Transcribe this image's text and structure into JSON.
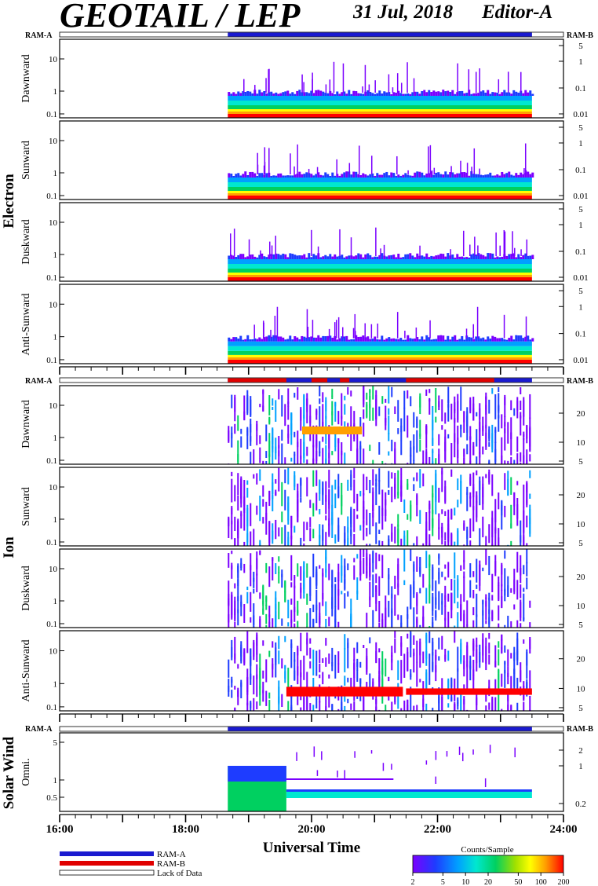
{
  "header": {
    "title": "GEOTAIL / LEP",
    "date": "31 Jul, 2018",
    "editor": "Editor-A"
  },
  "colors": {
    "ram_a": "#1a1ad0",
    "ram_b": "#e00000",
    "no_data": "#ffffff"
  },
  "groups": {
    "electron": "Electron",
    "ion": "Ion",
    "solar_wind": "Solar Wind"
  },
  "ram_labels": {
    "left": "RAM-A",
    "right": "RAM-B"
  },
  "panels": {
    "e_dawnward": "Dawnward",
    "e_sunward": "Sunward",
    "e_duskward": "Duskward",
    "e_antisunward": "Anti-Sunward",
    "i_dawnward": "Dawnward",
    "i_sunward": "Sunward",
    "i_duskward": "Duskward",
    "i_antisunward": "Anti-Sunward",
    "sw_omni": "Omni."
  },
  "xaxis": {
    "label": "Universal Time",
    "ticks": [
      "16:00",
      "18:00",
      "20:00",
      "22:00",
      "24:00"
    ]
  },
  "legend": {
    "ram_a": "RAM-A",
    "ram_b": "RAM-B",
    "lack": "Lack of Data"
  },
  "colorbar": {
    "title": "Counts/Sample",
    "ticks": [
      "2",
      "5",
      "10",
      "20",
      "50",
      "100",
      "200"
    ]
  },
  "chart_data": {
    "type": "heatmap",
    "x_range_hours": [
      16,
      24
    ],
    "data_interval_hours": [
      18.67,
      23.5
    ],
    "colorscale": [
      "#7a00ff",
      "#1e3cff",
      "#00a0ff",
      "#00e8d0",
      "#00d060",
      "#a0e000",
      "#ffff00",
      "#ffa000",
      "#ff0000"
    ],
    "panels": [
      {
        "name": "Electron Dawnward",
        "left_ticks": [
          "10",
          "1",
          "0.1"
        ],
        "right_ticks": [
          "5",
          "1",
          "0.1",
          "0.01"
        ]
      },
      {
        "name": "Electron Sunward",
        "left_ticks": [
          "10",
          "1",
          "0.1"
        ],
        "right_ticks": [
          "5",
          "1",
          "0.1",
          "0.01"
        ]
      },
      {
        "name": "Electron Duskward",
        "left_ticks": [
          "10",
          "1",
          "0.1"
        ],
        "right_ticks": [
          "5",
          "1",
          "0.1",
          "0.01"
        ]
      },
      {
        "name": "Electron Anti-Sunward",
        "left_ticks": [
          "10",
          "1",
          "0.1"
        ],
        "right_ticks": [
          "5",
          "1",
          "0.1",
          "0.01"
        ]
      },
      {
        "name": "Ion Dawnward",
        "left_ticks": [
          "10",
          "1",
          "0.1"
        ],
        "right_ticks": [
          "20",
          "10",
          "5"
        ]
      },
      {
        "name": "Ion Sunward",
        "left_ticks": [
          "10",
          "1",
          "0.1"
        ],
        "right_ticks": [
          "20",
          "10",
          "5"
        ]
      },
      {
        "name": "Ion Duskward",
        "left_ticks": [
          "10",
          "1",
          "0.1"
        ],
        "right_ticks": [
          "20",
          "10",
          "5"
        ]
      },
      {
        "name": "Ion Anti-Sunward",
        "left_ticks": [
          "10",
          "1",
          "0.1"
        ],
        "right_ticks": [
          "20",
          "10",
          "5"
        ]
      },
      {
        "name": "Solar Wind Omni.",
        "left_ticks": [
          "5",
          "1",
          "0.5"
        ],
        "right_ticks": [
          "2",
          "1",
          "0.2"
        ]
      }
    ]
  }
}
